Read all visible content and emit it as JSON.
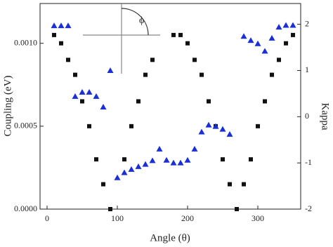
{
  "chart_data": {
    "type": "scatter",
    "x_label": "Angle (θ)",
    "y_label": "Coupling (eV)",
    "y2_label": "Kappa",
    "annotation": "ϕ",
    "xlim": [
      -10,
      361
    ],
    "xticks": [
      0,
      100,
      200,
      300
    ],
    "ylim": [
      0,
      0.00124
    ],
    "yticks": [
      {
        "value": 0,
        "label": "0.0000"
      },
      {
        "value": 0.0005,
        "label": "0.0005"
      },
      {
        "value": 0.001,
        "label": "0.0010"
      }
    ],
    "y2lim": [
      -2,
      2.45
    ],
    "y2ticks": [
      -2,
      -1,
      0,
      1,
      2
    ],
    "series": [
      {
        "marker": "square",
        "color": "#111111",
        "x": [
          10,
          20,
          30,
          40,
          50,
          60,
          70,
          80,
          90,
          110,
          120,
          130,
          140,
          150,
          180,
          190,
          200,
          210,
          220,
          230,
          240,
          250,
          260,
          270,
          280,
          290,
          300,
          310,
          320,
          330,
          340,
          350
        ],
        "values": [
          0.00105,
          0.001,
          0.0009,
          0.00081,
          0.00065,
          0.0005,
          0.0003,
          0.00015,
          0,
          0.0003,
          0.0005,
          0.00065,
          0.00081,
          0.0009,
          0.00105,
          0.00105,
          0.001,
          0.0009,
          0.00081,
          0.00065,
          0.0005,
          0.0003,
          0.00015,
          0,
          0.00015,
          0.0003,
          0.0005,
          0.00065,
          0.00081,
          0.0009,
          0.001,
          0.00105
        ]
      },
      {
        "marker": "triangle",
        "color": "#1a2fd6",
        "axis": "y2",
        "x": [
          10,
          20,
          30,
          40,
          50,
          60,
          70,
          80,
          90,
          100,
          110,
          120,
          130,
          140,
          150,
          160,
          170,
          180,
          190,
          200,
          210,
          220,
          230,
          240,
          250,
          260,
          280,
          290,
          300,
          310,
          320,
          330,
          340,
          350
        ],
        "values": [
          1.97,
          1.97,
          1.97,
          0.44,
          0.53,
          0.53,
          0.44,
          0.21,
          1.0,
          -1.32,
          -1.21,
          -1.14,
          -1.08,
          -1.03,
          -0.95,
          -0.7,
          -0.94,
          -1.0,
          -1.0,
          -0.94,
          -0.7,
          -0.33,
          -0.18,
          -0.21,
          -0.27,
          -0.38,
          1.74,
          1.65,
          1.58,
          1.42,
          1.7,
          1.94,
          1.98,
          1.98
        ]
      }
    ]
  }
}
